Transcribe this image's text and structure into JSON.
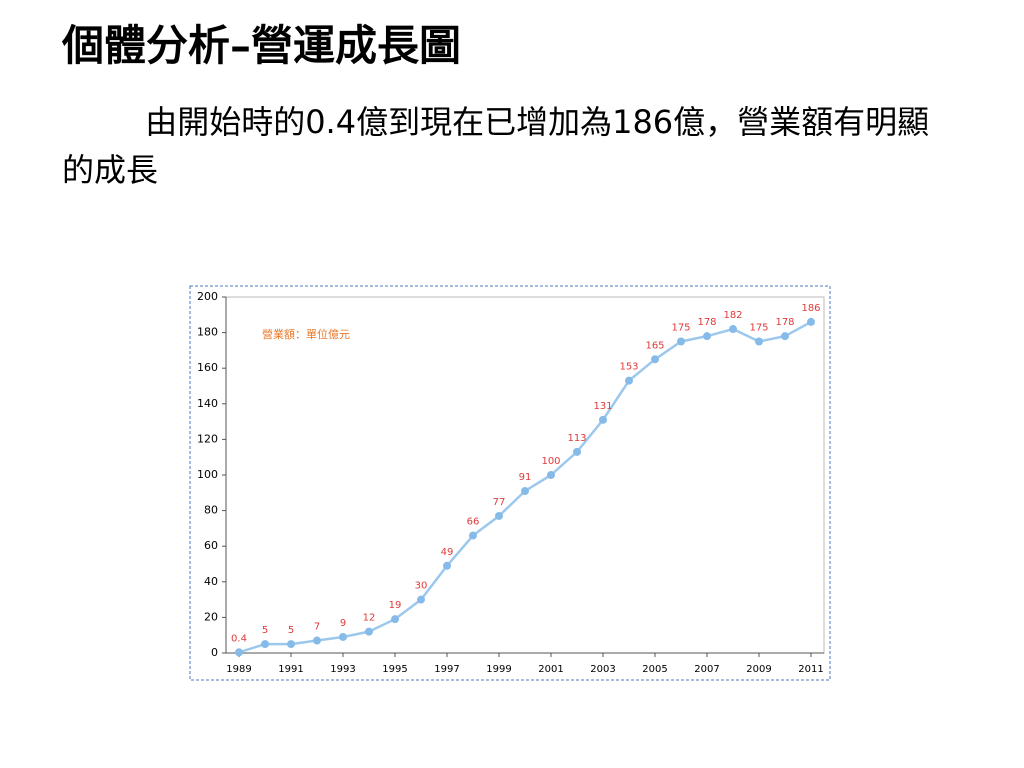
{
  "slide": {
    "title": "個體分析–營運成長圖",
    "body": "由開始時的0.4億到現在已增加為186億，營業額有明顯的成長"
  },
  "chart_data": {
    "type": "line",
    "annotation": "營業額：單位億元",
    "x": [
      1989,
      1990,
      1991,
      1992,
      1993,
      1994,
      1995,
      1996,
      1997,
      1998,
      1999,
      2000,
      2001,
      2002,
      2003,
      2004,
      2005,
      2006,
      2007,
      2008,
      2009,
      2010,
      2011
    ],
    "series": [
      {
        "name": "營業額",
        "color": "#9cc8ee",
        "values": [
          0.4,
          5,
          5,
          7,
          9,
          12,
          19,
          30,
          49,
          66,
          77,
          91,
          100,
          113,
          131,
          153,
          165,
          175,
          178,
          182,
          175,
          178,
          186
        ]
      }
    ],
    "xlim": [
      1988.5,
      2011.5
    ],
    "xticks": [
      1989,
      1991,
      1993,
      1995,
      1997,
      1999,
      2001,
      2003,
      2005,
      2007,
      2009,
      2011
    ],
    "ylim": [
      0,
      200
    ],
    "yticks": [
      0,
      20,
      40,
      60,
      80,
      100,
      120,
      140,
      160,
      180,
      200
    ],
    "label_color": "#e03a3a",
    "annotation_color": "#e8782a"
  }
}
